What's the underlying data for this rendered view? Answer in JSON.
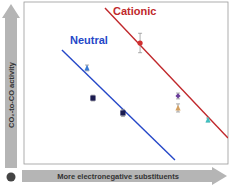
{
  "chart_data": {
    "type": "scatter",
    "x_label": "More electronegative substituents",
    "y_label": "CO₂-to-CO activity",
    "xlim": [
      0,
      100
    ],
    "ylim": [
      0,
      100
    ],
    "xticks": [],
    "yticks": [],
    "tick_labels": false,
    "grid": false,
    "series": [
      {
        "name": "Neutral",
        "type": "line",
        "color": "#2547c8",
        "x": [
          18.6,
          74.0
        ],
        "values": [
          70.4,
          2.5
        ]
      },
      {
        "name": "Cationic",
        "type": "line",
        "color": "#c0282c",
        "x": [
          39.7,
          100
        ],
        "values": [
          96.3,
          16.0
        ]
      },
      {
        "type": "scatter",
        "marker": "triangle",
        "color": "#3a7bd5",
        "x": [
          30.9
        ],
        "values": [
          59.3
        ],
        "errors": [
          1.8
        ]
      },
      {
        "type": "scatter",
        "marker": "square",
        "color": "#1c1c50",
        "x": [
          33.8
        ],
        "values": [
          40.7
        ],
        "errors": [
          1.8
        ]
      },
      {
        "type": "scatter",
        "marker": "square",
        "color": "#1c1c50",
        "x": [
          48.5
        ],
        "values": [
          31.5
        ],
        "errors": [
          2.2
        ]
      },
      {
        "type": "scatter",
        "marker": "circle",
        "color": "#d03030",
        "x": [
          56.9
        ],
        "values": [
          74.7
        ],
        "errors": [
          6
        ]
      },
      {
        "type": "scatter",
        "marker": "diamond",
        "color": "#6a3d9a",
        "x": [
          75.5
        ],
        "values": [
          42.0
        ],
        "errors": [
          1.8
        ]
      },
      {
        "type": "scatter",
        "marker": "triangle",
        "color": "#d4a060",
        "x": [
          75.5
        ],
        "values": [
          34.6
        ],
        "errors": [
          2.5
        ]
      },
      {
        "type": "scatter",
        "marker": "triangle",
        "color": "#40c0c0",
        "x": [
          90.2
        ],
        "values": [
          27.2
        ],
        "errors": [
          1.2
        ]
      }
    ]
  }
}
